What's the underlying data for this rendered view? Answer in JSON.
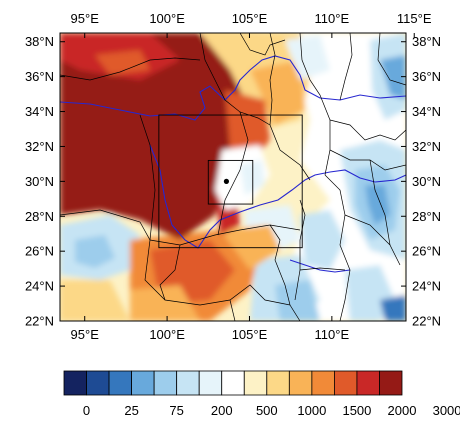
{
  "map": {
    "top_lon_labels": [
      "95°E",
      "100°E",
      "105°E",
      "110°E",
      "115°E"
    ],
    "bottom_lon_labels": [
      "95°E",
      "100°E",
      "105°E",
      "110°E"
    ],
    "lat_labels": [
      "38°N",
      "36°N",
      "34°N",
      "32°N",
      "30°N",
      "28°N",
      "26°N",
      "24°N",
      "22°N"
    ],
    "lon_range": [
      93.5,
      114.5
    ],
    "lat_range": [
      22,
      38.5
    ],
    "marker": {
      "lon": 103.6,
      "lat": 30.0
    },
    "outer_box": {
      "lon": [
        99.5,
        108.2
      ],
      "lat": [
        26.2,
        33.8
      ]
    },
    "inner_box": {
      "lon": [
        102.5,
        105.2
      ],
      "lat": [
        28.7,
        31.2
      ]
    }
  },
  "colorbar": {
    "labels": [
      "0",
      "25",
      "75",
      "200",
      "500",
      "1000",
      "1500",
      "2000",
      "3000"
    ],
    "colors": [
      "#142360",
      "#1e4b94",
      "#3577bd",
      "#68a9dc",
      "#9dcdec",
      "#c6e4f4",
      "#e6f4fa",
      "#ffffff",
      "#fdf2c6",
      "#fcd887",
      "#f9b357",
      "#f18a38",
      "#e05a2a",
      "#c92827",
      "#951a16"
    ]
  }
}
